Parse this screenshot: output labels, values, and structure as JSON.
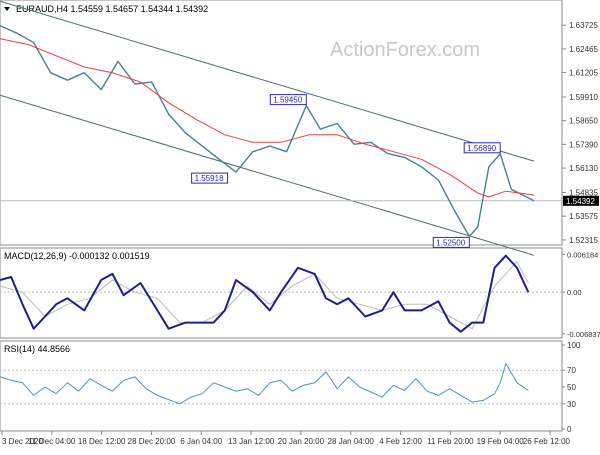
{
  "colors": {
    "price": "#4a7f97",
    "ma": "#e8413b",
    "channel": "#4f6f66",
    "macd_line": "#1f1f8c",
    "macd_signal": "#bbbbbb",
    "rsi": "#4a90d6",
    "label_border": "#2b2bb0",
    "label_text": "#2b2bb0",
    "axis_text": "#333333",
    "current_box": "#000000"
  },
  "chart_data": [
    {
      "type": "line",
      "panel": "price",
      "title": "EURAUD,H4  1.54559  1.54657  1.54344  1.54392",
      "watermark": "ActionForex.com",
      "ylim": [
        1.5215,
        1.6485
      ],
      "y_ticks": [
        "1.63725",
        "1.62465",
        "1.61205",
        "1.59910",
        "1.58650",
        "1.57390",
        "1.56130",
        "1.54835",
        "1.53575",
        "1.52315"
      ],
      "current_price": "1.54392",
      "x_tick_labels": [
        "3 Dec 2020",
        "11 Dec 04:00",
        "18 Dec 12:00",
        "28 Dec 20:00",
        "6 Jan 04:00",
        "13 Jan 12:00",
        "20 Jan 20:00",
        "28 Jan 04:00",
        "4 Feb 12:00",
        "11 Feb 20:00",
        "19 Feb 04:00",
        "26 Feb 12:00"
      ],
      "annotations": [
        {
          "text": "1.59450",
          "x": 0.545,
          "value": 1.5945
        },
        {
          "text": "1.55918",
          "x": 0.405,
          "value": 1.55918
        },
        {
          "text": "1.56890",
          "x": 0.89,
          "value": 1.5689
        },
        {
          "text": "1.52500",
          "x": 0.835,
          "value": 1.525
        }
      ],
      "price_series": {
        "x": [
          0,
          0.03,
          0.06,
          0.09,
          0.12,
          0.15,
          0.18,
          0.21,
          0.24,
          0.27,
          0.3,
          0.33,
          0.36,
          0.39,
          0.42,
          0.45,
          0.48,
          0.51,
          0.545,
          0.57,
          0.6,
          0.63,
          0.66,
          0.69,
          0.72,
          0.75,
          0.78,
          0.81,
          0.835,
          0.85,
          0.87,
          0.89,
          0.91,
          0.93,
          0.95
        ],
        "y": [
          1.637,
          1.633,
          1.628,
          1.612,
          1.608,
          1.612,
          1.603,
          1.618,
          1.606,
          1.607,
          1.59,
          1.58,
          1.573,
          1.566,
          1.5592,
          1.57,
          1.573,
          1.57,
          1.5945,
          1.582,
          1.585,
          1.574,
          1.575,
          1.569,
          1.567,
          1.562,
          1.555,
          1.538,
          1.525,
          1.53,
          1.562,
          1.5689,
          1.55,
          1.547,
          1.5439
        ]
      },
      "ma_series": {
        "x": [
          0,
          0.05,
          0.1,
          0.15,
          0.2,
          0.25,
          0.3,
          0.35,
          0.4,
          0.45,
          0.5,
          0.55,
          0.6,
          0.65,
          0.7,
          0.75,
          0.8,
          0.85,
          0.87,
          0.9,
          0.95
        ],
        "y": [
          1.63,
          1.627,
          1.621,
          1.615,
          1.612,
          1.607,
          1.596,
          1.587,
          1.579,
          1.575,
          1.575,
          1.579,
          1.579,
          1.574,
          1.57,
          1.566,
          1.558,
          1.548,
          1.546,
          1.549,
          1.547
        ]
      },
      "channel_upper": {
        "x": [
          0,
          0.95
        ],
        "y": [
          1.65,
          1.565
        ]
      },
      "channel_lower": {
        "x": [
          0,
          0.95
        ],
        "y": [
          1.6,
          1.515
        ]
      }
    },
    {
      "type": "line",
      "panel": "macd",
      "title": "MACD(12,26,9) -0.000132 0.001519",
      "ylim": [
        -0.0072,
        0.0066
      ],
      "y_ticks": [
        "0.006184",
        "0.00",
        "-0.006837"
      ],
      "macd_series": {
        "x": [
          0,
          0.02,
          0.04,
          0.06,
          0.08,
          0.1,
          0.12,
          0.15,
          0.18,
          0.2,
          0.22,
          0.25,
          0.28,
          0.3,
          0.33,
          0.35,
          0.38,
          0.4,
          0.42,
          0.45,
          0.48,
          0.5,
          0.53,
          0.56,
          0.58,
          0.6,
          0.62,
          0.65,
          0.68,
          0.7,
          0.72,
          0.75,
          0.78,
          0.8,
          0.82,
          0.84,
          0.86,
          0.88,
          0.9,
          0.92,
          0.94
        ],
        "y": [
          0.002,
          0.0025,
          -0.002,
          -0.006,
          -0.004,
          -0.002,
          -0.001,
          -0.003,
          0.002,
          0.003,
          -0.0005,
          0.0015,
          -0.003,
          -0.006,
          -0.005,
          -0.005,
          -0.005,
          -0.003,
          0.002,
          0.0,
          -0.003,
          0.0,
          0.004,
          0.003,
          -0.001,
          -0.002,
          -0.001,
          -0.004,
          -0.003,
          0.0,
          -0.003,
          -0.003,
          -0.0015,
          -0.005,
          -0.0065,
          -0.005,
          -0.005,
          0.004,
          0.006,
          0.004,
          0.0
        ]
      },
      "signal_series": {
        "x": [
          0,
          0.04,
          0.08,
          0.12,
          0.16,
          0.2,
          0.24,
          0.28,
          0.32,
          0.36,
          0.4,
          0.44,
          0.48,
          0.52,
          0.56,
          0.6,
          0.64,
          0.68,
          0.72,
          0.76,
          0.8,
          0.84,
          0.88,
          0.92,
          0.94
        ],
        "y": [
          0.001,
          0.0,
          -0.004,
          -0.002,
          -0.001,
          0.002,
          0.0,
          -0.001,
          -0.005,
          -0.005,
          -0.003,
          0.001,
          -0.002,
          0.001,
          0.003,
          -0.001,
          -0.002,
          -0.003,
          -0.002,
          -0.002,
          -0.004,
          -0.006,
          0.001,
          0.005,
          0.0015
        ]
      }
    },
    {
      "type": "line",
      "panel": "rsi",
      "title": "RSI(14) 44.8566",
      "ylim": [
        0,
        100
      ],
      "y_ticks": [
        "100",
        "70",
        "50",
        "30",
        "0"
      ],
      "reference_levels": [
        70,
        30
      ],
      "rsi_series": {
        "x": [
          0,
          0.02,
          0.04,
          0.06,
          0.08,
          0.1,
          0.12,
          0.14,
          0.16,
          0.18,
          0.2,
          0.22,
          0.24,
          0.26,
          0.28,
          0.3,
          0.32,
          0.34,
          0.36,
          0.38,
          0.4,
          0.42,
          0.44,
          0.46,
          0.48,
          0.5,
          0.52,
          0.54,
          0.56,
          0.58,
          0.6,
          0.62,
          0.64,
          0.66,
          0.68,
          0.7,
          0.72,
          0.74,
          0.76,
          0.78,
          0.8,
          0.82,
          0.84,
          0.86,
          0.88,
          0.89,
          0.9,
          0.92,
          0.94
        ],
        "y": [
          62,
          58,
          55,
          40,
          50,
          42,
          55,
          45,
          60,
          52,
          45,
          58,
          62,
          48,
          40,
          35,
          30,
          38,
          42,
          55,
          50,
          45,
          48,
          40,
          55,
          58,
          45,
          52,
          55,
          68,
          48,
          62,
          50,
          44,
          38,
          52,
          46,
          60,
          45,
          40,
          48,
          40,
          32,
          34,
          42,
          55,
          78,
          55,
          46
        ]
      }
    }
  ]
}
